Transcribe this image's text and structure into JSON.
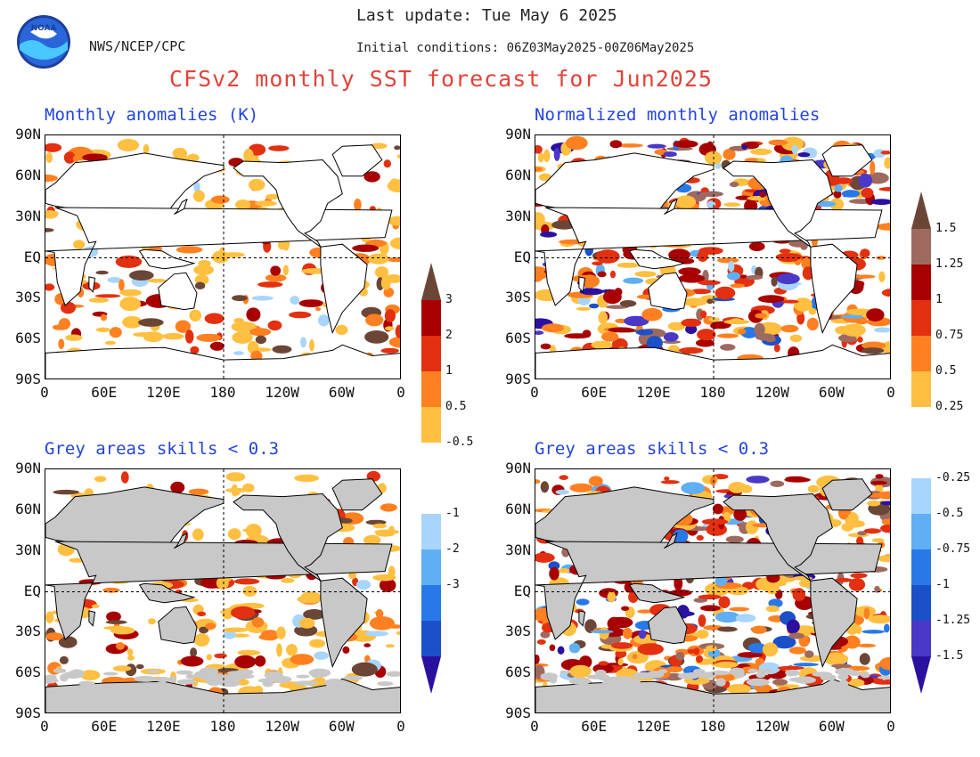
{
  "header": {
    "last_update": "Last update: Tue May 6 2025",
    "init_conditions": "Initial conditions: 06Z03May2025-00Z06May2025",
    "agency": "NWS/NCEP/CPC",
    "logo_text": "NOAA",
    "title": "CFSv2 monthly SST forecast for Jun2025"
  },
  "axes": {
    "lat_labels": [
      "90N",
      "60N",
      "30N",
      "EQ",
      "30S",
      "60S",
      "90S"
    ],
    "lon_labels": [
      "0",
      "60E",
      "120E",
      "180",
      "120W",
      "60W",
      "0"
    ]
  },
  "panels": [
    {
      "title": "Monthly anomalies (K)",
      "masked": false,
      "kind": "anom"
    },
    {
      "title": "Normalized monthly anomalies",
      "masked": false,
      "kind": "norm"
    },
    {
      "title": "Grey areas skills < 0.3",
      "masked": true,
      "kind": "anom"
    },
    {
      "title": "Grey areas skills < 0.3",
      "masked": true,
      "kind": "norm"
    }
  ],
  "colorbars": {
    "anom": {
      "labels": [
        "3",
        "2",
        "1",
        "0.5",
        "-0.5",
        "-1",
        "-2",
        "-3"
      ],
      "warm_colors": [
        "#6b4636",
        "#a80000",
        "#e23010",
        "#ff8020",
        "#ffbf40"
      ],
      "cool_colors": [
        "#a8d5fb",
        "#60aef4",
        "#2878e8",
        "#1c50c8",
        "#2c10a0"
      ]
    },
    "norm": {
      "labels": [
        "1.5",
        "1.25",
        "1",
        "0.75",
        "0.5",
        "0.25",
        "-0.25",
        "-0.5",
        "-0.75",
        "-1",
        "-1.25",
        "-1.5"
      ],
      "warm_colors": [
        "#6b4636",
        "#9e6a60",
        "#a80000",
        "#e23010",
        "#ff8020",
        "#ffbf40"
      ],
      "cool_colors": [
        "#a8d5fb",
        "#60aef4",
        "#2878e8",
        "#1c50c8",
        "#4a38c8",
        "#2c10a0"
      ]
    }
  },
  "colors": {
    "title": "#e0443a",
    "panel_title": "#2244dd",
    "land_masked": "#c8c8c8",
    "land_plain": "#ffffff"
  }
}
